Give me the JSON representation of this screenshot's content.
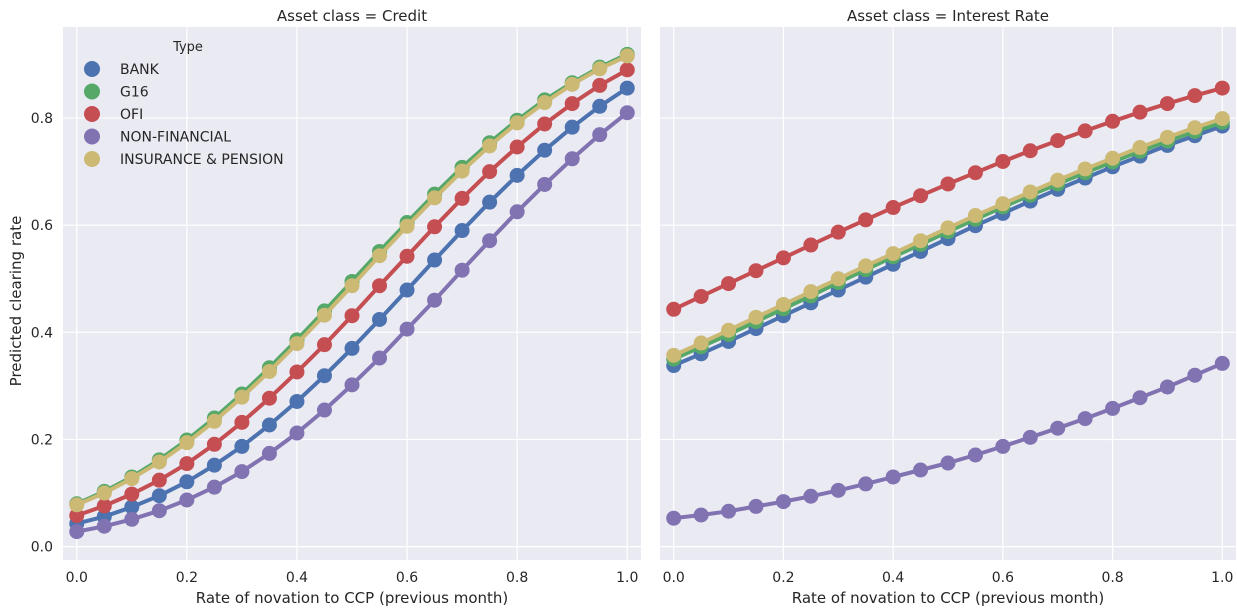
{
  "figure": {
    "ylabel": "Predicted clearing rate",
    "legend_title": "Type",
    "legend_placement": "top-left"
  },
  "colors": {
    "BANK": "#4c72b0",
    "G16": "#55a868",
    "OFI": "#c44e52",
    "NON-FINANCIAL": "#8172b2",
    "INSURANCE & PENSION": "#ccb974",
    "panel_background": "#eaeaf2",
    "grid": "#ffffff"
  },
  "chart_data": [
    {
      "type": "line",
      "title": "Asset class = Credit",
      "xlabel": "Rate of novation to CCP (previous month)",
      "ylabel": "Predicted clearing rate",
      "xlim": [
        -0.025,
        1.025
      ],
      "ylim": [
        -0.025,
        0.97
      ],
      "xticks": [
        "0.0",
        "0.2",
        "0.4",
        "0.6",
        "0.8",
        "1.0"
      ],
      "yticks": [
        "0.0",
        "0.2",
        "0.4",
        "0.6",
        "0.8"
      ],
      "grid": true,
      "markers": true,
      "x": [
        0.0,
        0.05,
        0.1,
        0.15,
        0.2,
        0.25,
        0.3,
        0.35,
        0.4,
        0.45,
        0.5,
        0.55,
        0.6,
        0.65,
        0.7,
        0.75,
        0.8,
        0.85,
        0.9,
        0.95,
        1.0
      ],
      "series": [
        {
          "name": "BANK",
          "values": [
            0.043,
            0.056,
            0.074,
            0.095,
            0.121,
            0.152,
            0.187,
            0.227,
            0.271,
            0.319,
            0.37,
            0.424,
            0.479,
            0.535,
            0.59,
            0.643,
            0.693,
            0.74,
            0.783,
            0.822,
            0.856
          ]
        },
        {
          "name": "G16",
          "values": [
            0.08,
            0.103,
            0.13,
            0.162,
            0.199,
            0.24,
            0.285,
            0.334,
            0.386,
            0.44,
            0.495,
            0.551,
            0.605,
            0.658,
            0.708,
            0.754,
            0.796,
            0.834,
            0.866,
            0.895,
            0.919
          ]
        },
        {
          "name": "OFI",
          "values": [
            0.058,
            0.076,
            0.098,
            0.124,
            0.155,
            0.191,
            0.232,
            0.277,
            0.326,
            0.377,
            0.431,
            0.487,
            0.542,
            0.597,
            0.65,
            0.7,
            0.746,
            0.789,
            0.827,
            0.861,
            0.89
          ]
        },
        {
          "name": "NON-FINANCIAL",
          "values": [
            0.028,
            0.038,
            0.051,
            0.067,
            0.087,
            0.111,
            0.14,
            0.174,
            0.212,
            0.255,
            0.302,
            0.352,
            0.406,
            0.46,
            0.516,
            0.571,
            0.625,
            0.676,
            0.724,
            0.769,
            0.81
          ]
        },
        {
          "name": "INSURANCE & PENSION",
          "values": [
            0.078,
            0.1,
            0.127,
            0.158,
            0.194,
            0.234,
            0.279,
            0.327,
            0.379,
            0.432,
            0.487,
            0.543,
            0.598,
            0.651,
            0.701,
            0.748,
            0.791,
            0.829,
            0.863,
            0.892,
            0.916
          ]
        }
      ]
    },
    {
      "type": "line",
      "title": "Asset class = Interest Rate",
      "xlabel": "Rate of novation to CCP (previous month)",
      "xlim": [
        -0.025,
        1.025
      ],
      "ylim": [
        -0.025,
        0.97
      ],
      "xticks": [
        "0.0",
        "0.2",
        "0.4",
        "0.6",
        "0.8",
        "1.0"
      ],
      "yticks": [],
      "grid": true,
      "markers": true,
      "x": [
        0.0,
        0.05,
        0.1,
        0.15,
        0.2,
        0.25,
        0.3,
        0.35,
        0.4,
        0.45,
        0.5,
        0.55,
        0.6,
        0.65,
        0.7,
        0.75,
        0.8,
        0.85,
        0.9,
        0.95,
        1.0
      ],
      "series": [
        {
          "name": "BANK",
          "values": [
            0.338,
            0.36,
            0.383,
            0.407,
            0.431,
            0.455,
            0.479,
            0.503,
            0.527,
            0.551,
            0.575,
            0.599,
            0.622,
            0.645,
            0.667,
            0.688,
            0.709,
            0.729,
            0.749,
            0.767,
            0.785
          ]
        },
        {
          "name": "G16",
          "values": [
            0.35,
            0.373,
            0.396,
            0.42,
            0.444,
            0.468,
            0.493,
            0.517,
            0.541,
            0.564,
            0.588,
            0.611,
            0.634,
            0.656,
            0.677,
            0.698,
            0.718,
            0.738,
            0.757,
            0.775,
            0.792
          ]
        },
        {
          "name": "OFI",
          "values": [
            0.443,
            0.467,
            0.491,
            0.515,
            0.539,
            0.563,
            0.587,
            0.61,
            0.633,
            0.655,
            0.677,
            0.698,
            0.719,
            0.739,
            0.758,
            0.776,
            0.794,
            0.811,
            0.827,
            0.842,
            0.856
          ]
        },
        {
          "name": "NON-FINANCIAL",
          "values": [
            0.053,
            0.059,
            0.066,
            0.075,
            0.084,
            0.094,
            0.105,
            0.117,
            0.13,
            0.143,
            0.156,
            0.171,
            0.187,
            0.204,
            0.221,
            0.239,
            0.258,
            0.278,
            0.298,
            0.32,
            0.342
          ]
        },
        {
          "name": "INSURANCE & PENSION",
          "values": [
            0.357,
            0.38,
            0.404,
            0.428,
            0.452,
            0.476,
            0.5,
            0.524,
            0.547,
            0.571,
            0.595,
            0.618,
            0.64,
            0.662,
            0.684,
            0.705,
            0.725,
            0.745,
            0.764,
            0.782,
            0.799
          ]
        }
      ]
    }
  ]
}
